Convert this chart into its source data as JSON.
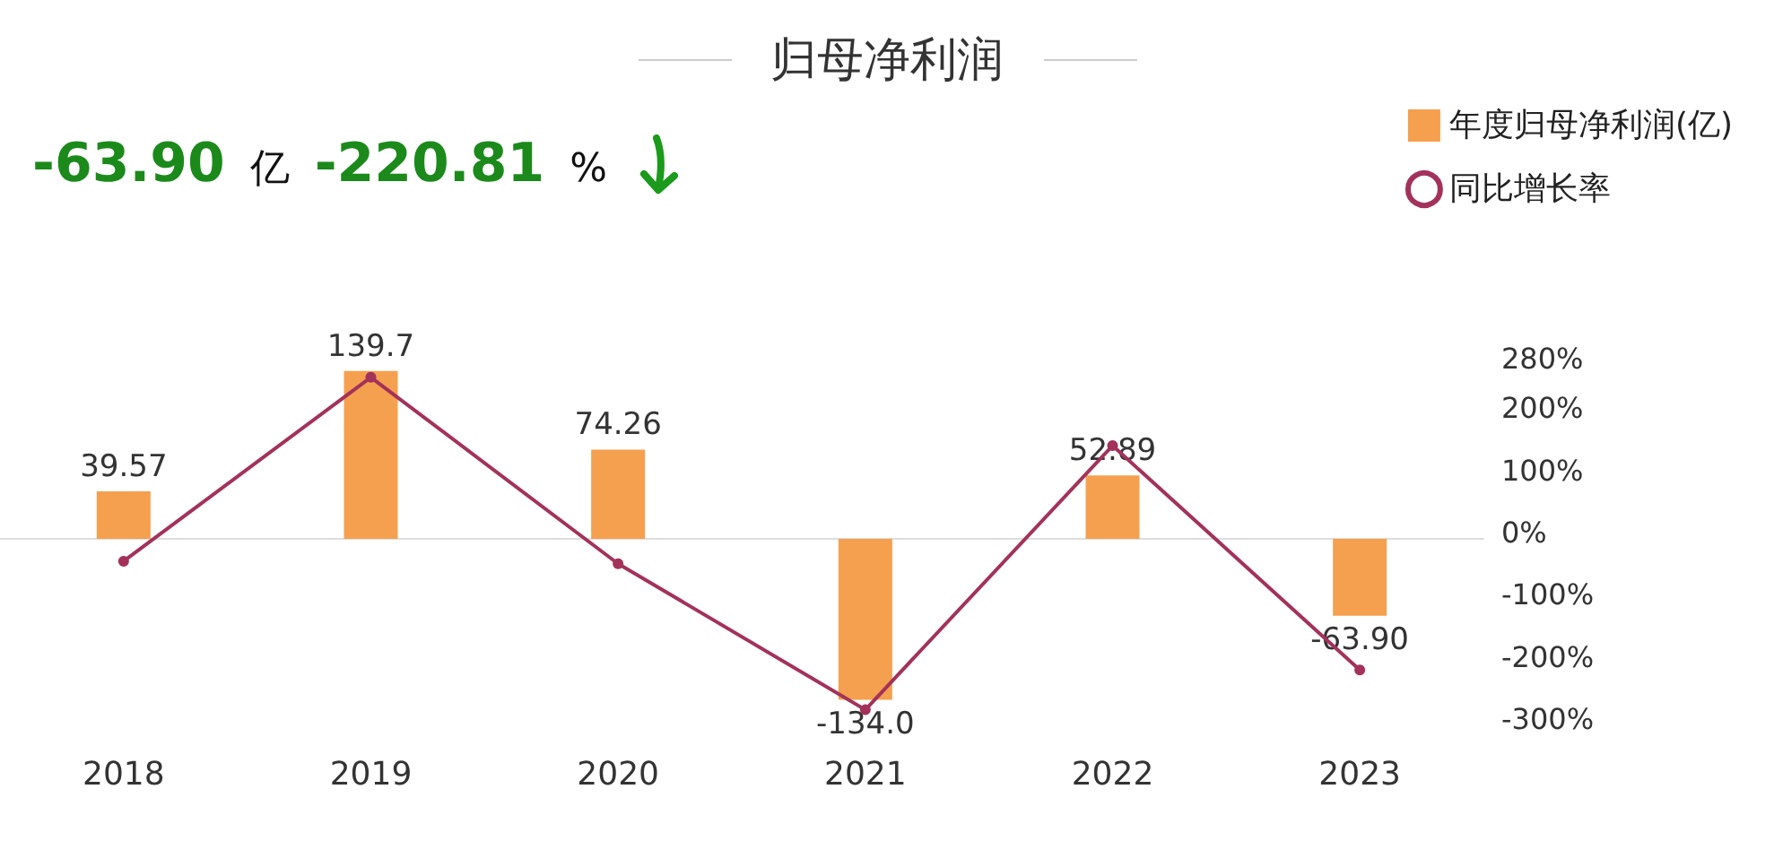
{
  "chart_data": {
    "type": "bar",
    "title": "归母净利润",
    "annotations": [
      "-63.90",
      "亿",
      "-220.81",
      "%"
    ],
    "categories": [
      "2018",
      "2019",
      "2020",
      "2021",
      "2022",
      "2023"
    ],
    "series": [
      {
        "name": "年度归母净利润(亿)",
        "color": "#f5a04f",
        "values": [
          39.57,
          139.7,
          74.26,
          -134.0,
          52.89,
          -63.9
        ],
        "value_labels": [
          "39.57",
          "139.7",
          "74.26",
          "-134.0",
          "52.89",
          "-63.90"
        ]
      },
      {
        "name": "同比增长率",
        "type": "line",
        "axis": "y2",
        "color": "#a3325a",
        "marker": "circle",
        "values": [
          -46,
          250,
          -50,
          -285,
          140,
          -221
        ]
      }
    ],
    "y2lim": [
      -300,
      280
    ],
    "y2ticks": [
      {
        "value": 280,
        "label": "280%"
      },
      {
        "value": 200,
        "label": "200%"
      },
      {
        "value": 100,
        "label": "100%"
      },
      {
        "value": 0,
        "label": "0%"
      },
      {
        "value": -100,
        "label": "-100%"
      },
      {
        "value": -200,
        "label": "-200%"
      },
      {
        "value": -300,
        "label": "-300%"
      }
    ],
    "grid": false,
    "legend": "top right"
  }
}
